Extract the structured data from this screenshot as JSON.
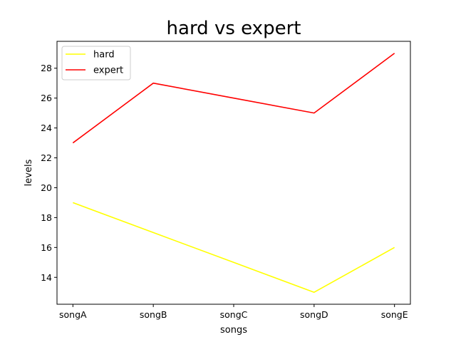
{
  "chart_data": {
    "type": "line",
    "title": "hard vs expert",
    "xlabel": "songs",
    "ylabel": "levels",
    "categories": [
      "songA",
      "songB",
      "songC",
      "songD",
      "songE"
    ],
    "series": [
      {
        "name": "hard",
        "values": [
          19,
          17,
          15,
          13,
          16
        ],
        "color": "#ffff00"
      },
      {
        "name": "expert",
        "values": [
          23,
          27,
          26,
          25,
          29
        ],
        "color": "#ff0000"
      }
    ],
    "ylim": [
      12.2,
      29.8
    ],
    "yticks": [
      14,
      16,
      18,
      20,
      22,
      24,
      26,
      28
    ],
    "grid": false,
    "legend_position": "upper-left"
  }
}
